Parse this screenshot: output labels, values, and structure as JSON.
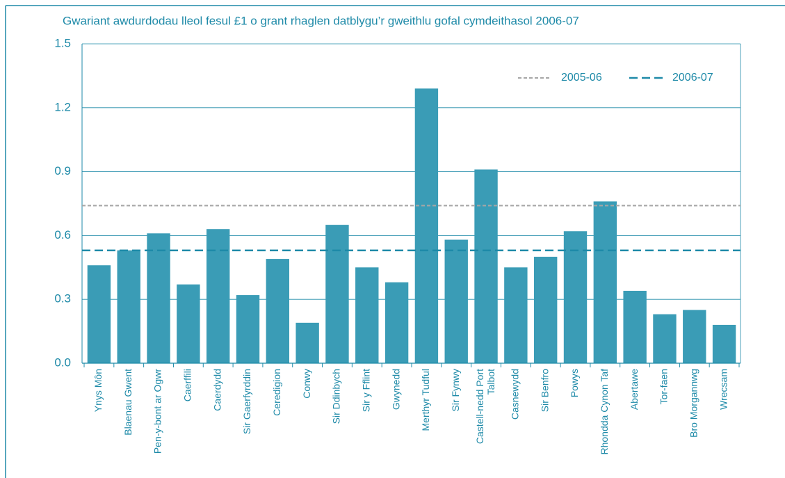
{
  "chart_data": {
    "type": "bar",
    "title": "Gwariant awdurdodau lleol fesul £1 o grant rhaglen datblygu’r gweithlu gofal cymdeithasol 2006-07",
    "categories": [
      "Ynys Môn",
      "Blaenau Gwent",
      "Pen-y-bont ar Ogwr",
      "Caerffili",
      "Caerdydd",
      "Sir Gaerfyrddin",
      "Ceredigion",
      "Conwy",
      "Sir Ddinbych",
      "Sir y Fflint",
      "Gwynedd",
      "Merthyr Tudful",
      "Sir Fynwy",
      "Castell-nedd Port Talbot",
      "Casnewydd",
      "Sir Benfro",
      "Powys",
      "Rhondda Cynon Taf",
      "Abertawe",
      "Tor-faen",
      "Bro Morgannwg",
      "Wrecsam"
    ],
    "values": [
      0.46,
      0.53,
      0.61,
      0.37,
      0.63,
      0.32,
      0.49,
      0.19,
      0.65,
      0.45,
      0.38,
      1.29,
      0.58,
      0.91,
      0.45,
      0.5,
      0.62,
      0.76,
      0.34,
      0.23,
      0.25,
      0.18
    ],
    "color": "#3a9cb6",
    "reference_lines": [
      {
        "name": "2005-06",
        "color": "#a6a6a6",
        "value": 0.74
      },
      {
        "name": "2006-07",
        "color": "#1e8aa8",
        "value": 0.53
      }
    ],
    "ylim": [
      0,
      1.5
    ],
    "yticks": [
      {
        "value": 0,
        "label": "0.0"
      },
      0.3,
      0.6,
      0.9,
      1.2,
      1.5
    ],
    "grid": true
  }
}
